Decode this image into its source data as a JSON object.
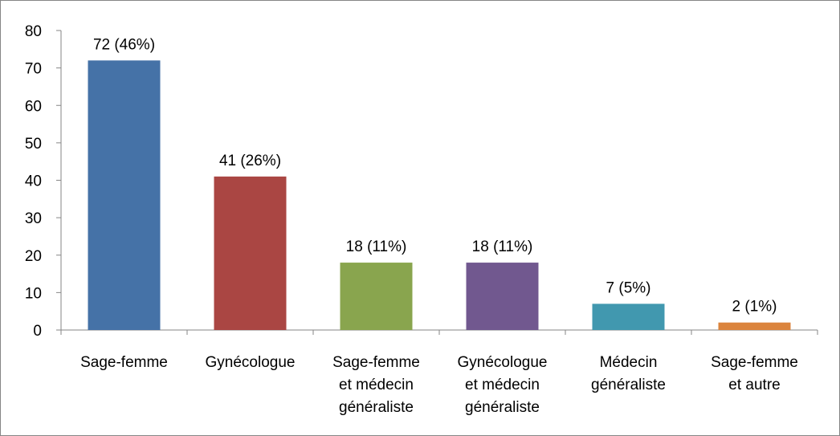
{
  "chart_data": {
    "type": "bar",
    "categories": [
      "Sage-femme",
      "Gynécologue",
      "Sage-femme\net médecin\ngénéraliste",
      "Gynécologue\net médecin\ngénéraliste",
      "Médecin\ngénéraliste",
      "Sage-femme\net autre"
    ],
    "values": [
      72,
      41,
      18,
      18,
      7,
      2
    ],
    "value_labels": [
      "72 (46%)",
      "41 (26%)",
      "18 (11%)",
      "18 (11%)",
      "7 (5%)",
      "2 (1%)"
    ],
    "colors": [
      "#4572a7",
      "#aa4643",
      "#89a54e",
      "#71588f",
      "#4198af",
      "#db843d"
    ],
    "ylim": [
      0,
      80
    ],
    "yticks": [
      0,
      10,
      20,
      30,
      40,
      50,
      60,
      70,
      80
    ],
    "grid": false
  }
}
